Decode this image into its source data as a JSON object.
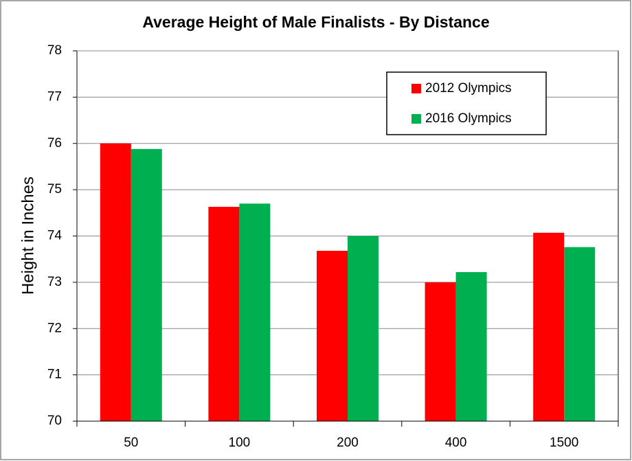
{
  "chart_data": {
    "type": "bar",
    "title": "Average Height of Male Finalists - By Distance",
    "y_label": "Height in Inches",
    "categories": [
      "50",
      "100",
      "200",
      "400",
      "1500"
    ],
    "series": [
      {
        "name": "2012 Olympics",
        "color": "#ff0000",
        "values": [
          76.0,
          74.63,
          73.68,
          73.0,
          74.07
        ]
      },
      {
        "name": "2016 Olympics",
        "color": "#00b050",
        "values": [
          75.88,
          74.7,
          74.0,
          73.22,
          73.76
        ]
      }
    ],
    "ylim": [
      70,
      78
    ],
    "yticks": [
      70,
      71,
      72,
      73,
      74,
      75,
      76,
      77,
      78
    ],
    "grid": true,
    "legend": "upper right"
  }
}
